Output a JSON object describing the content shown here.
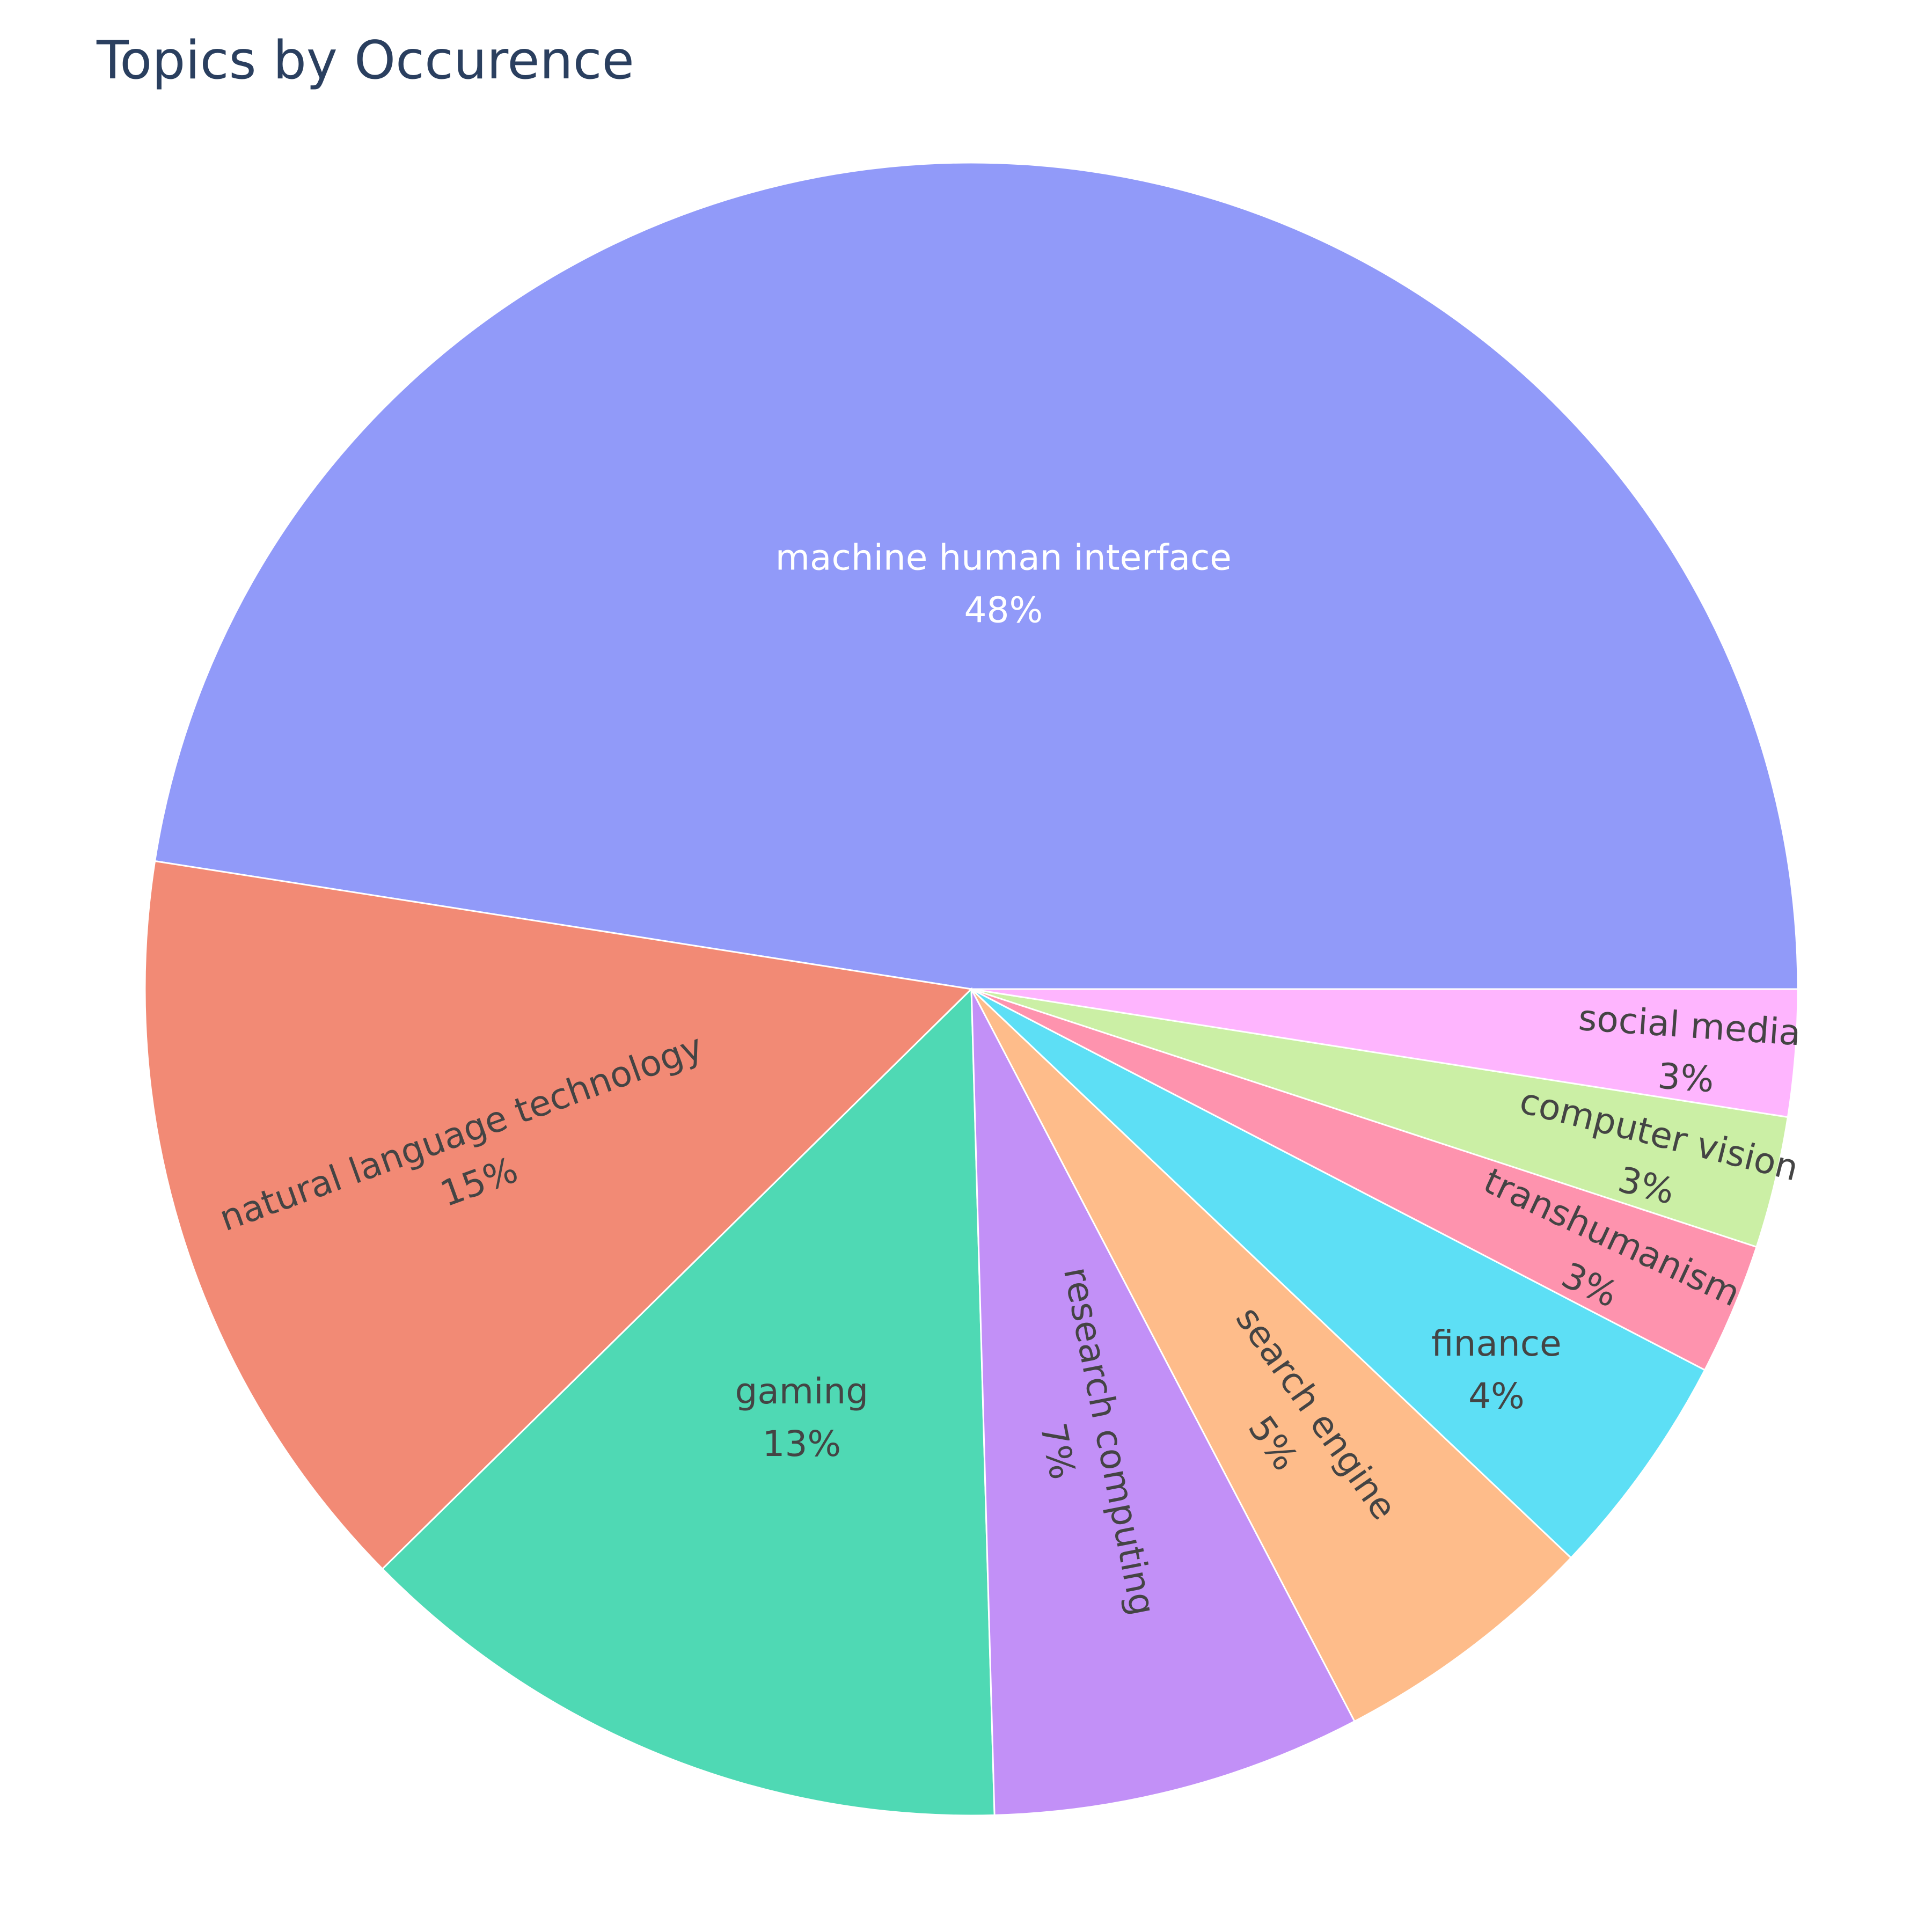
{
  "chart_data": {
    "type": "pie",
    "title": "Topics by Occurence",
    "slices": [
      {
        "label": "machine human interface",
        "percent": "48%",
        "value": 48.0,
        "color": "#919af9",
        "text_color": "#ffffff"
      },
      {
        "label": "natural language technology",
        "percent": "15%",
        "value": 15.0,
        "color": "#f28a75",
        "text_color": "#444444"
      },
      {
        "label": "gaming",
        "percent": "13%",
        "value": 13.2,
        "color": "#4fd9b4",
        "text_color": "#444444"
      },
      {
        "label": "research computing",
        "percent": "7%",
        "value": 7.3,
        "color": "#c290f7",
        "text_color": "#444444"
      },
      {
        "label": "search engine",
        "percent": "5%",
        "value": 5.3,
        "color": "#febc8a",
        "text_color": "#444444"
      },
      {
        "label": "finance",
        "percent": "4%",
        "value": 4.5,
        "color": "#5ddff5",
        "text_color": "#444444"
      },
      {
        "label": "transhumanism",
        "percent": "3%",
        "value": 2.6,
        "color": "#fe93ae",
        "text_color": "#444444"
      },
      {
        "label": "computer vision",
        "percent": "3%",
        "value": 2.6,
        "color": "#cbefa5",
        "text_color": "#444444"
      },
      {
        "label": "social media",
        "percent": "3%",
        "value": 2.5,
        "color": "#feb5fe",
        "text_color": "#444444"
      }
    ],
    "direction": "clockwise",
    "legend": "none"
  }
}
